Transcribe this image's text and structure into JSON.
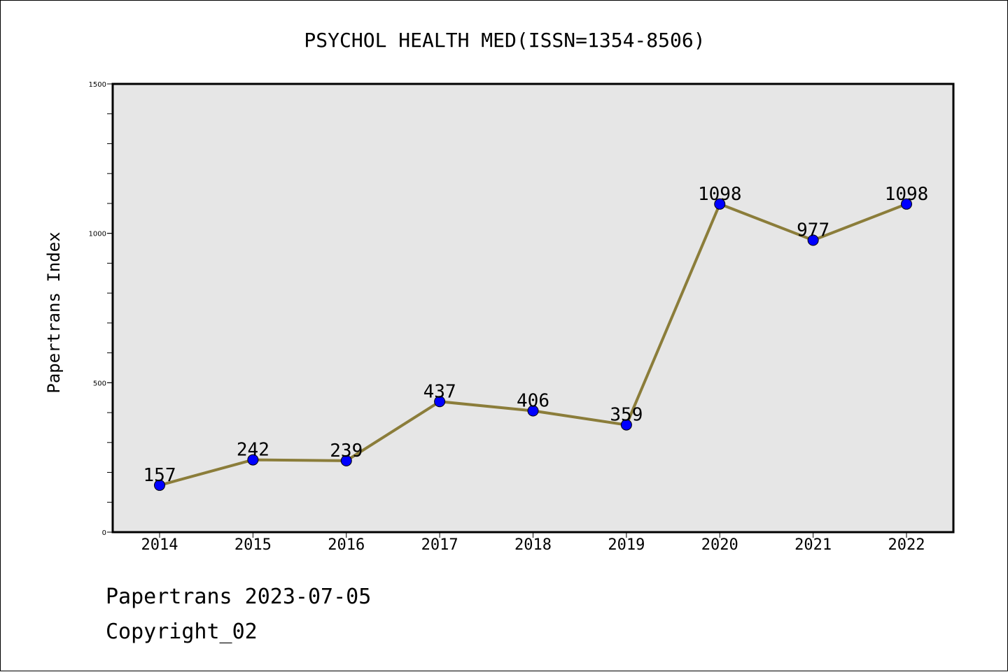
{
  "chart_data": {
    "type": "line",
    "title": "PSYCHOL HEALTH MED(ISSN=1354-8506)",
    "xlabel": "",
    "ylabel": "Papertrans Index",
    "categories": [
      "2014",
      "2015",
      "2016",
      "2017",
      "2018",
      "2019",
      "2020",
      "2021",
      "2022"
    ],
    "values": [
      157,
      242,
      239,
      437,
      406,
      359,
      1098,
      977,
      1098
    ],
    "data_labels": [
      "157",
      "242",
      "239",
      "437",
      "406",
      "359",
      "1098",
      "977",
      "1098"
    ],
    "ylim": [
      0,
      1500
    ],
    "yticks": [
      "0",
      "500",
      "1000",
      "1500"
    ],
    "grid": false,
    "legend": "none",
    "colors": {
      "line": "#8b7d3a",
      "marker": "#0000ff",
      "plot_background": "#e6e6e6"
    }
  },
  "footer": {
    "date_line": "Papertrans 2023-07-05",
    "copyright_line": "Copyright_02"
  }
}
